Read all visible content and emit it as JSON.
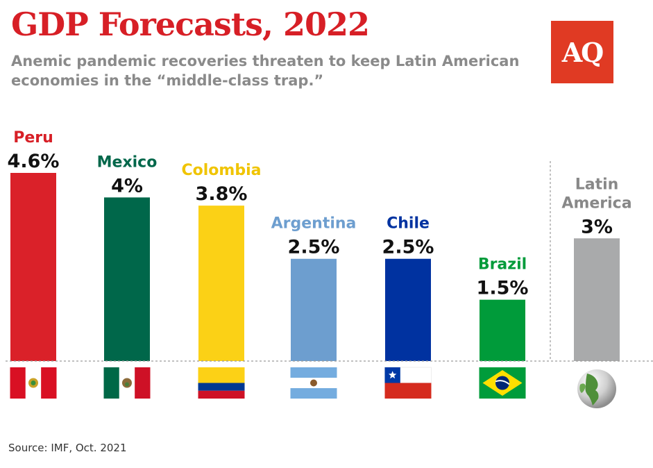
{
  "header": {
    "title": "GDP Forecasts, 2022",
    "subtitle": "Anemic pandemic recoveries threaten to keep Latin American economies in the “middle-class trap.”",
    "logo": "AQ"
  },
  "source": "Source: IMF, Oct. 2021",
  "chart_data": {
    "type": "bar",
    "title": "GDP Forecasts, 2022",
    "categories": [
      "Peru",
      "Mexico",
      "Colombia",
      "Argentina",
      "Chile",
      "Brazil",
      "Latin America"
    ],
    "values": [
      4.6,
      4,
      3.8,
      2.5,
      2.5,
      1.5,
      3
    ],
    "value_labels": [
      "4.6%",
      "4%",
      "3.8%",
      "2.5%",
      "2.5%",
      "1.5%",
      "3%"
    ],
    "label_lines": [
      [
        "Peru"
      ],
      [
        "Mexico"
      ],
      [
        "Colombia"
      ],
      [
        "Argentina"
      ],
      [
        "Chile"
      ],
      [
        "Brazil"
      ],
      [
        "Latin",
        "America"
      ]
    ],
    "colors": [
      "#da2129",
      "#00674a",
      "#fbd116",
      "#6d9ecf",
      "#0032a0",
      "#009b3a",
      "#a9aaab"
    ],
    "label_colors": [
      "#d71f26",
      "#00674a",
      "#f0c400",
      "#6d9ecf",
      "#0032a0",
      "#009b3a",
      "#888888"
    ],
    "flags": [
      "peru-flag",
      "mexico-flag",
      "colombia-flag",
      "argentina-flag",
      "chile-flag",
      "brazil-flag",
      "globe"
    ],
    "ylim": [
      0,
      4.6
    ],
    "grid": false,
    "legend": "none"
  }
}
